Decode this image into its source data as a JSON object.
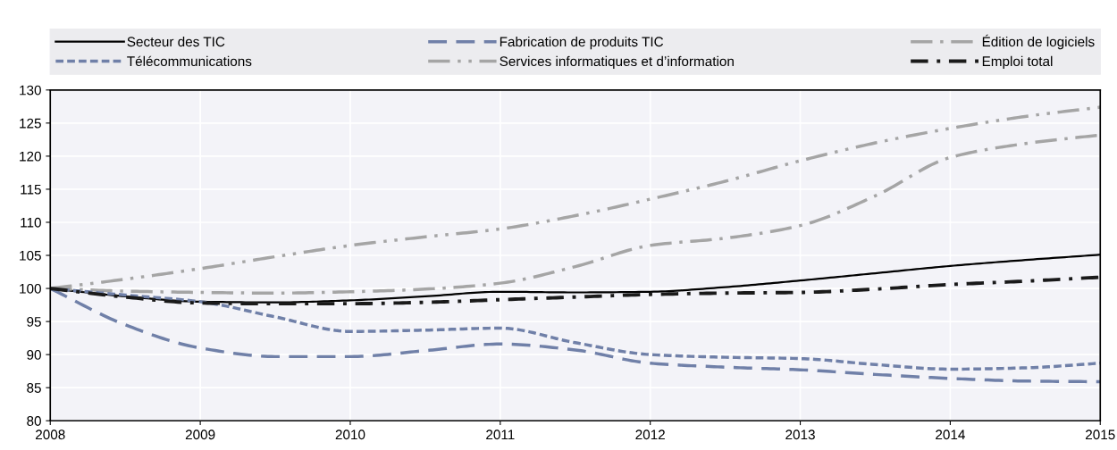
{
  "chart_data": {
    "type": "line",
    "x": [
      2008,
      2008.5,
      2009,
      2009.5,
      2010,
      2010.5,
      2011,
      2011.5,
      2012,
      2012.5,
      2013,
      2013.5,
      2014,
      2014.5,
      2015
    ],
    "series": [
      {
        "name": "Secteur des TIC",
        "color": "#000000",
        "line_style": "solid",
        "values": [
          100,
          98.8,
          98.0,
          97.9,
          98.2,
          98.8,
          99.5,
          99.4,
          99.5,
          100.2,
          101.2,
          102.3,
          103.4,
          104.3,
          105.1
        ]
      },
      {
        "name": "Fabrication de produits TIC",
        "color": "#7080a8",
        "line_style": "dashed",
        "values": [
          100,
          94.5,
          91.0,
          89.7,
          89.7,
          90.6,
          91.6,
          90.7,
          88.7,
          88.1,
          87.7,
          87.0,
          86.4,
          86.0,
          85.9
        ]
      },
      {
        "name": "Édition de logiciels",
        "color": "#a5a5a5",
        "line_style": "dashdot",
        "values": [
          100,
          99.6,
          99.4,
          99.3,
          99.5,
          99.9,
          100.8,
          103.3,
          106.5,
          107.6,
          109.5,
          114.0,
          119.8,
          121.9,
          123.2
        ]
      },
      {
        "name": "Télécommunications",
        "color": "#7080a8",
        "line_style": "dotted",
        "values": [
          100,
          99.0,
          98.0,
          95.7,
          93.5,
          93.7,
          94.0,
          91.8,
          90.0,
          89.6,
          89.4,
          88.5,
          87.8,
          88.0,
          88.7
        ]
      },
      {
        "name": "Services informatiques et d’information",
        "color": "#a5a5a5",
        "line_style": "dashdotdot",
        "values": [
          100,
          101.4,
          103.0,
          104.8,
          106.5,
          107.8,
          109.0,
          111.0,
          113.5,
          116.2,
          119.3,
          122.0,
          124.2,
          126.0,
          127.4
        ]
      },
      {
        "name": "Emploi total",
        "color": "#1a1a1a",
        "line_style": "dashdot_bold",
        "values": [
          100,
          98.7,
          97.8,
          97.7,
          97.7,
          97.9,
          98.3,
          98.7,
          99.1,
          99.3,
          99.4,
          99.9,
          100.6,
          101.1,
          101.7
        ]
      }
    ],
    "xlim": [
      2008,
      2015
    ],
    "xticks": [
      2008,
      2009,
      2010,
      2011,
      2012,
      2013,
      2014,
      2015
    ],
    "ylim": [
      80,
      130
    ],
    "yticks": [
      80,
      85,
      90,
      95,
      100,
      105,
      110,
      115,
      120,
      125,
      130
    ],
    "grid": true,
    "legend": "top"
  }
}
